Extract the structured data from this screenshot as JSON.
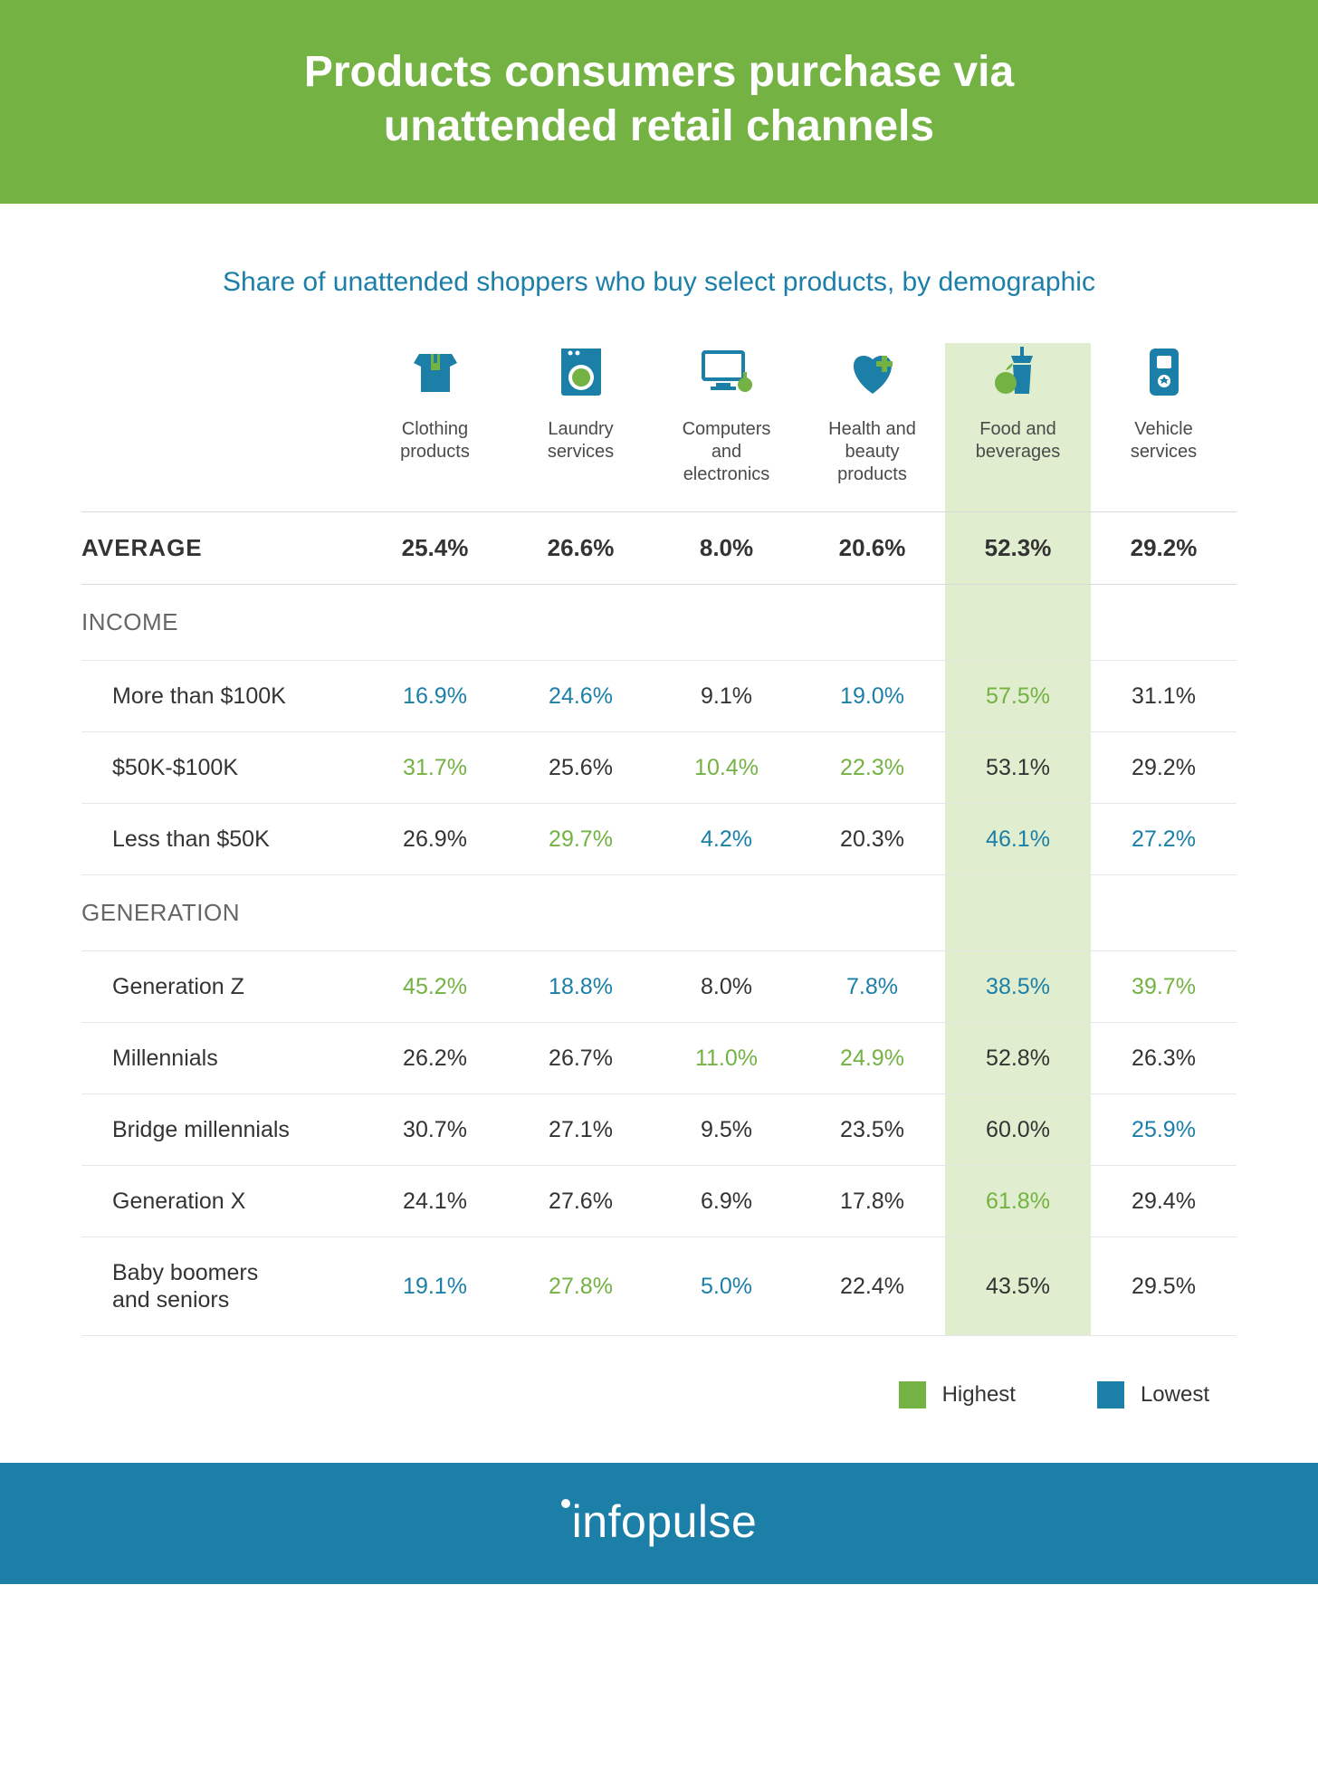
{
  "colors": {
    "header_bg": "#73b243",
    "header_text": "#ffffff",
    "subtitle_text": "#1b7fa8",
    "body_text": "#333333",
    "section_text": "#666666",
    "border": "#d9d9d9",
    "sub_border": "#e6e6e6",
    "highlight_col_bg": "#e0edce",
    "highest_value": "#73b243",
    "lowest_value": "#1b7fa8",
    "footer_bg": "#1b7fa8",
    "footer_text": "#ffffff",
    "icon_primary": "#1b7fa8",
    "icon_accent": "#73b243"
  },
  "typography": {
    "title_fontsize": 48,
    "title_weight": 700,
    "subtitle_fontsize": 30,
    "avg_fontsize": 26,
    "avg_weight": 700,
    "section_fontsize": 26,
    "cell_fontsize": 25,
    "col_label_fontsize": 20,
    "legend_fontsize": 24,
    "footer_fontsize": 50
  },
  "header": {
    "title_line1": "Products consumers purchase via",
    "title_line2": "unattended retail channels"
  },
  "subtitle": "Share of unattended shoppers who buy select products, by demographic",
  "table": {
    "type": "table",
    "highlight_column_index": 4,
    "columns": [
      {
        "icon": "clothing",
        "label": "Clothing\nproducts"
      },
      {
        "icon": "laundry",
        "label": "Laundry\nservices"
      },
      {
        "icon": "computers",
        "label": "Computers\nand\nelectronics"
      },
      {
        "icon": "health",
        "label": "Health and\nbeauty\nproducts"
      },
      {
        "icon": "food",
        "label": "Food and\nbeverages"
      },
      {
        "icon": "vehicle",
        "label": "Vehicle\nservices"
      }
    ],
    "average": {
      "label": "AVERAGE",
      "values": [
        "25.4%",
        "26.6%",
        "8.0%",
        "20.6%",
        "52.3%",
        "29.2%"
      ]
    },
    "sections": [
      {
        "label": "INCOME",
        "rows": [
          {
            "label": "More than $100K",
            "values": [
              "16.9%",
              "24.6%",
              "9.1%",
              "19.0%",
              "57.5%",
              "31.1%"
            ],
            "marks": [
              "low",
              "low",
              "",
              "low",
              "high",
              ""
            ]
          },
          {
            "label": "$50K-$100K",
            "values": [
              "31.7%",
              "25.6%",
              "10.4%",
              "22.3%",
              "53.1%",
              "29.2%"
            ],
            "marks": [
              "high",
              "",
              "high",
              "high",
              "",
              ""
            ]
          },
          {
            "label": "Less than $50K",
            "values": [
              "26.9%",
              "29.7%",
              "4.2%",
              "20.3%",
              "46.1%",
              "27.2%"
            ],
            "marks": [
              "",
              "high",
              "low",
              "",
              "low",
              "low"
            ]
          }
        ]
      },
      {
        "label": "GENERATION",
        "rows": [
          {
            "label": "Generation Z",
            "values": [
              "45.2%",
              "18.8%",
              "8.0%",
              "7.8%",
              "38.5%",
              "39.7%"
            ],
            "marks": [
              "high",
              "low",
              "",
              "low",
              "low",
              "high"
            ]
          },
          {
            "label": "Millennials",
            "values": [
              "26.2%",
              "26.7%",
              "11.0%",
              "24.9%",
              "52.8%",
              "26.3%"
            ],
            "marks": [
              "",
              "",
              "high",
              "high",
              "",
              ""
            ]
          },
          {
            "label": "Bridge millennials",
            "values": [
              "30.7%",
              "27.1%",
              "9.5%",
              "23.5%",
              "60.0%",
              "25.9%"
            ],
            "marks": [
              "",
              "",
              "",
              "",
              "",
              "low"
            ]
          },
          {
            "label": "Generation X",
            "values": [
              "24.1%",
              "27.6%",
              "6.9%",
              "17.8%",
              "61.8%",
              "29.4%"
            ],
            "marks": [
              "",
              "",
              "",
              "",
              "high",
              ""
            ]
          },
          {
            "label": "Baby boomers\nand seniors",
            "values": [
              "19.1%",
              "27.8%",
              "5.0%",
              "22.4%",
              "43.5%",
              "29.5%"
            ],
            "marks": [
              "low",
              "high",
              "low",
              "",
              "",
              ""
            ]
          }
        ]
      }
    ]
  },
  "legend": {
    "highest": "Highest",
    "lowest": "Lowest"
  },
  "footer": {
    "brand": "infopulse"
  }
}
